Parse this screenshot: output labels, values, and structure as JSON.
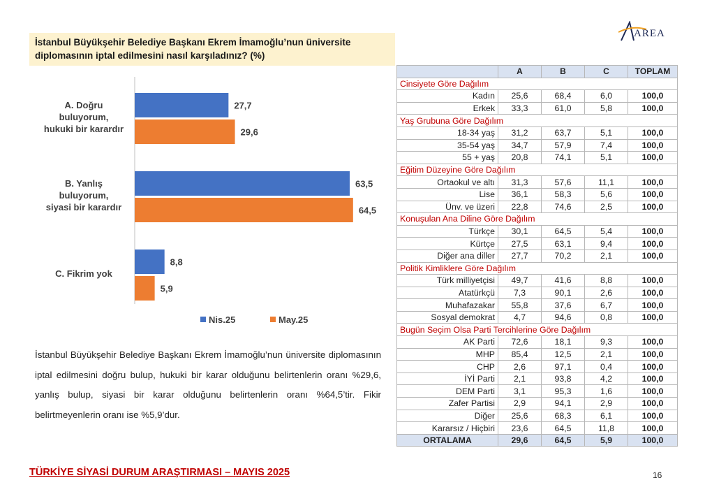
{
  "question": "İstanbul Büyükşehir Belediye Başkanı Ekrem İmamoğlu’nun üniversite diplomasının iptal edilmesini nasıl karşıladınız? (%)",
  "logo_text": "AREA",
  "chart_data": {
    "type": "bar",
    "orientation": "horizontal",
    "categories": [
      [
        "A. Doğru",
        "buluyorum,",
        "hukuki bir karardır"
      ],
      [
        "B. Yanlış",
        "buluyorum,",
        "siyasi bir karardır"
      ],
      [
        "C. Fikrim yok"
      ]
    ],
    "series": [
      {
        "name": "Nis.25",
        "color": "#4472c4",
        "values": [
          27.7,
          63.5,
          8.8
        ],
        "labels": [
          "27,7",
          "63,5",
          "8,8"
        ]
      },
      {
        "name": "May.25",
        "color": "#ed7d31",
        "values": [
          29.6,
          64.5,
          5.9
        ],
        "labels": [
          "29,6",
          "64,5",
          "5,9"
        ]
      }
    ],
    "xlim": [
      0,
      100
    ],
    "legend": "bottom"
  },
  "paragraph": "İstanbul Büyükşehir Belediye Başkanı Ekrem İmamoğlu’nun üniversite diplomasının iptal edilmesini doğru bulup, hukuki bir karar olduğunu belirtenlerin oranı %29,6, yanlış bulup, siyasi bir karar olduğunu belirtenlerin oranı %64,5’tir. Fikir belirtmeyenlerin oranı ise %5,9’dur.",
  "table": {
    "headers": [
      "",
      "A",
      "B",
      "C",
      "TOPLAM"
    ],
    "sections": [
      {
        "title": "Cinsiyete Göre Dağılım",
        "rows": [
          [
            "Kadın",
            "25,6",
            "68,4",
            "6,0",
            "100,0"
          ],
          [
            "Erkek",
            "33,3",
            "61,0",
            "5,8",
            "100,0"
          ]
        ]
      },
      {
        "title": "Yaş Grubuna Göre Dağılım",
        "rows": [
          [
            "18-34 yaş",
            "31,2",
            "63,7",
            "5,1",
            "100,0"
          ],
          [
            "35-54 yaş",
            "34,7",
            "57,9",
            "7,4",
            "100,0"
          ],
          [
            "55 + yaş",
            "20,8",
            "74,1",
            "5,1",
            "100,0"
          ]
        ]
      },
      {
        "title": "Eğitim Düzeyine Göre Dağılım",
        "rows": [
          [
            "Ortaokul ve altı",
            "31,3",
            "57,6",
            "11,1",
            "100,0"
          ],
          [
            "Lise",
            "36,1",
            "58,3",
            "5,6",
            "100,0"
          ],
          [
            "Ünv. ve üzeri",
            "22,8",
            "74,6",
            "2,5",
            "100,0"
          ]
        ]
      },
      {
        "title": "Konuşulan Ana Diline Göre Dağılım",
        "rows": [
          [
            "Türkçe",
            "30,1",
            "64,5",
            "5,4",
            "100,0"
          ],
          [
            "Kürtçe",
            "27,5",
            "63,1",
            "9,4",
            "100,0"
          ],
          [
            "Diğer ana diller",
            "27,7",
            "70,2",
            "2,1",
            "100,0"
          ]
        ]
      },
      {
        "title": "Politik Kimliklere Göre Dağılım",
        "rows": [
          [
            "Türk milliyetçisi",
            "49,7",
            "41,6",
            "8,8",
            "100,0"
          ],
          [
            "Atatürkçü",
            "7,3",
            "90,1",
            "2,6",
            "100,0"
          ],
          [
            "Muhafazakar",
            "55,8",
            "37,6",
            "6,7",
            "100,0"
          ],
          [
            "Sosyal demokrat",
            "4,7",
            "94,6",
            "0,8",
            "100,0"
          ]
        ]
      },
      {
        "title": "Bugün Seçim Olsa Parti Tercihlerine Göre Dağılım",
        "rows": [
          [
            "AK Parti",
            "72,6",
            "18,1",
            "9,3",
            "100,0"
          ],
          [
            "MHP",
            "85,4",
            "12,5",
            "2,1",
            "100,0"
          ],
          [
            "CHP",
            "2,6",
            "97,1",
            "0,4",
            "100,0"
          ],
          [
            "İYİ Parti",
            "2,1",
            "93,8",
            "4,2",
            "100,0"
          ],
          [
            "DEM Parti",
            "3,1",
            "95,3",
            "1,6",
            "100,0"
          ],
          [
            "Zafer Partisi",
            "2,9",
            "94,1",
            "2,9",
            "100,0"
          ],
          [
            "Diğer",
            "25,6",
            "68,3",
            "6,1",
            "100,0"
          ],
          [
            "Kararsız / Hiçbiri",
            "23,6",
            "64,5",
            "11,8",
            "100,0"
          ]
        ]
      }
    ],
    "average": [
      "ORTALAMA",
      "29,6",
      "64,5",
      "5,9",
      "100,0"
    ]
  },
  "footer": {
    "title": "TÜRKİYE SİYASİ DURUM ARAŞTIRMASI – MAYIS 2025",
    "page": "16"
  }
}
